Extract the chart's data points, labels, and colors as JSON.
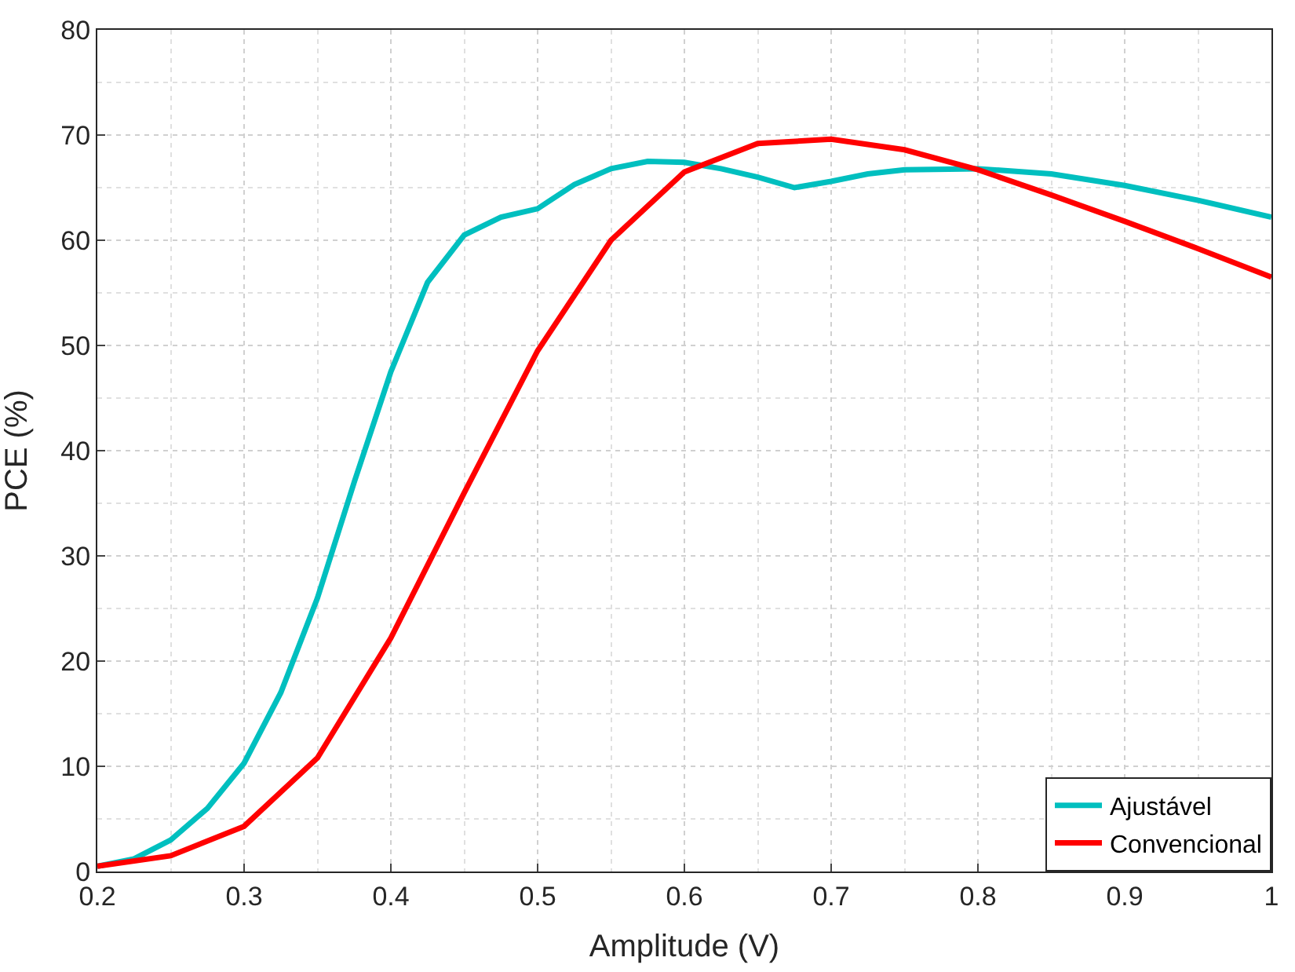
{
  "chart_data": {
    "type": "line",
    "xlabel": "Amplitude (V)",
    "ylabel": "PCE (%)",
    "xlim": [
      0.2,
      1.0
    ],
    "xticks": [
      0.2,
      0.3,
      0.4,
      0.5,
      0.6,
      0.7,
      0.8,
      0.9,
      1
    ],
    "ylim": [
      0,
      80
    ],
    "yticks": [
      0,
      10,
      20,
      30,
      40,
      50,
      60,
      70,
      80
    ],
    "grid": true,
    "legend": "bottom right",
    "marker": "none",
    "line_style": "solid",
    "series": [
      {
        "name": "Ajustável",
        "color": "#00bfbf",
        "x": [
          0.2,
          0.225,
          0.25,
          0.275,
          0.3,
          0.325,
          0.35,
          0.375,
          0.4,
          0.425,
          0.45,
          0.475,
          0.5,
          0.525,
          0.55,
          0.575,
          0.6,
          0.625,
          0.65,
          0.675,
          0.7,
          0.725,
          0.75,
          0.8,
          0.85,
          0.9,
          0.95,
          1.0
        ],
        "values": [
          0.5,
          1.2,
          3,
          6,
          10.3,
          17,
          26,
          37,
          47.5,
          56,
          60.5,
          62.2,
          63,
          65.3,
          66.8,
          67.5,
          67.4,
          66.8,
          66,
          65,
          65.6,
          66.3,
          66.7,
          66.8,
          66.3,
          65.2,
          63.8,
          62.2
        ]
      },
      {
        "name": "Convencional",
        "color": "#ff0000",
        "x": [
          0.2,
          0.25,
          0.3,
          0.35,
          0.4,
          0.45,
          0.5,
          0.55,
          0.6,
          0.65,
          0.7,
          0.75,
          0.8,
          0.85,
          0.9,
          0.95,
          1.0
        ],
        "values": [
          0.5,
          1.5,
          4.3,
          10.8,
          22.2,
          36,
          49.5,
          60,
          66.5,
          69.2,
          69.6,
          68.6,
          66.7,
          64.3,
          61.8,
          59.2,
          56.5
        ]
      }
    ]
  }
}
